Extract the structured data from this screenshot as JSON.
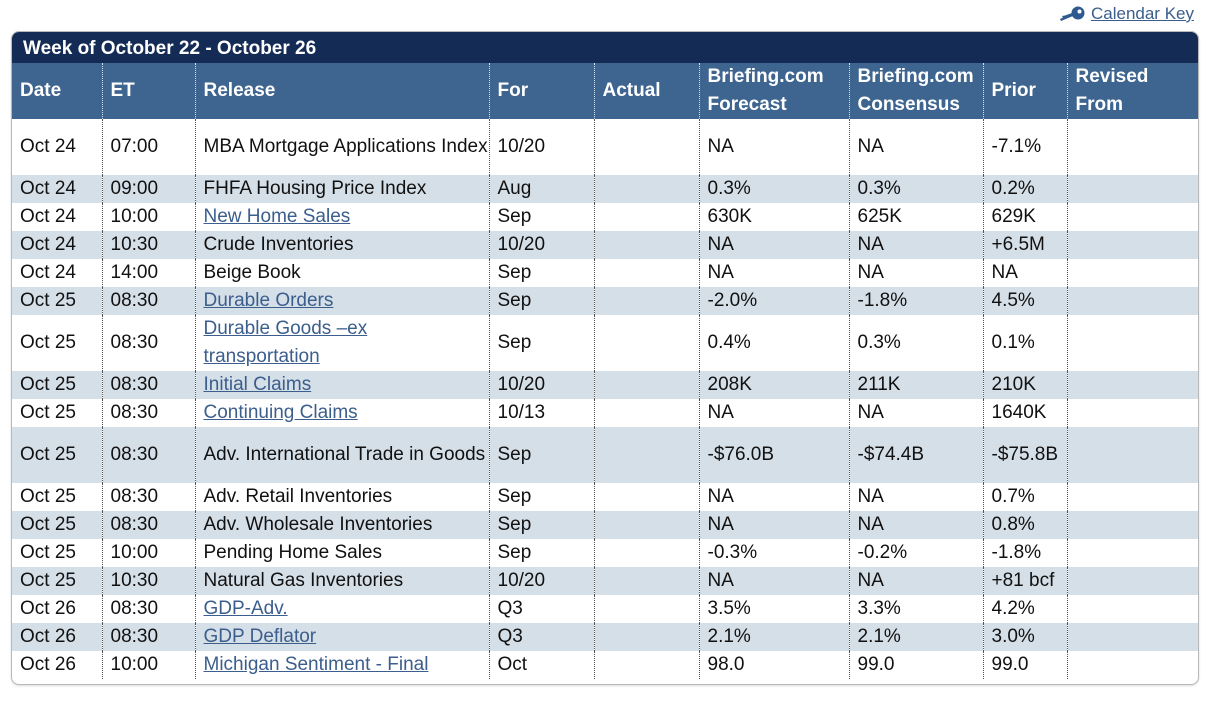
{
  "calendar_key": {
    "label": "Calendar Key",
    "icon": "key-icon"
  },
  "week_title": "Week of October 22 - October 26",
  "columns": [
    "Date",
    "ET",
    "Release",
    "For",
    "Actual",
    "Briefing.com Forecast",
    "Briefing.com Consensus",
    "Prior",
    "Revised From"
  ],
  "rows": [
    {
      "date": "Oct 24",
      "et": "07:00",
      "release": "MBA Mortgage Applications Index",
      "link": false,
      "for": "10/20",
      "actual": "",
      "forecast": "NA",
      "consensus": "NA",
      "prior": "-7.1%",
      "revised": ""
    },
    {
      "date": "Oct 24",
      "et": "09:00",
      "release": "FHFA Housing Price Index",
      "link": false,
      "for": "Aug",
      "actual": "",
      "forecast": "0.3%",
      "consensus": "0.3%",
      "prior": "0.2%",
      "revised": ""
    },
    {
      "date": "Oct 24",
      "et": "10:00",
      "release": "New Home Sales",
      "link": true,
      "for": "Sep",
      "actual": "",
      "forecast": "630K",
      "consensus": "625K",
      "prior": "629K",
      "revised": ""
    },
    {
      "date": "Oct 24",
      "et": "10:30",
      "release": "Crude Inventories",
      "link": false,
      "for": "10/20",
      "actual": "",
      "forecast": "NA",
      "consensus": "NA",
      "prior": "+6.5M",
      "revised": ""
    },
    {
      "date": "Oct 24",
      "et": "14:00",
      "release": "Beige Book",
      "link": false,
      "for": "Sep",
      "actual": "",
      "forecast": "NA",
      "consensus": "NA",
      "prior": "NA",
      "revised": ""
    },
    {
      "date": "Oct 25",
      "et": "08:30",
      "release": "Durable Orders",
      "link": true,
      "for": "Sep",
      "actual": "",
      "forecast": "-2.0%",
      "consensus": "-1.8%",
      "prior": "4.5%",
      "revised": ""
    },
    {
      "date": "Oct 25",
      "et": "08:30",
      "release": "Durable Goods –ex transportation",
      "link": true,
      "for": "Sep",
      "actual": "",
      "forecast": "0.4%",
      "consensus": "0.3%",
      "prior": "0.1%",
      "revised": ""
    },
    {
      "date": "Oct 25",
      "et": "08:30",
      "release": "Initial Claims",
      "link": true,
      "for": "10/20",
      "actual": "",
      "forecast": "208K",
      "consensus": "211K",
      "prior": "210K",
      "revised": ""
    },
    {
      "date": "Oct 25",
      "et": "08:30",
      "release": "Continuing Claims",
      "link": true,
      "for": "10/13",
      "actual": "",
      "forecast": "NA",
      "consensus": "NA",
      "prior": "1640K",
      "revised": ""
    },
    {
      "date": "Oct 25",
      "et": "08:30",
      "release": "Adv. International Trade in Goods",
      "link": false,
      "for": "Sep",
      "actual": "",
      "forecast": "-$76.0B",
      "consensus": "-$74.4B",
      "prior": "-$75.8B",
      "revised": ""
    },
    {
      "date": "Oct 25",
      "et": "08:30",
      "release": "Adv. Retail Inventories",
      "link": false,
      "for": "Sep",
      "actual": "",
      "forecast": "NA",
      "consensus": "NA",
      "prior": "0.7%",
      "revised": ""
    },
    {
      "date": "Oct 25",
      "et": "08:30",
      "release": "Adv. Wholesale Inventories",
      "link": false,
      "for": "Sep",
      "actual": "",
      "forecast": "NA",
      "consensus": "NA",
      "prior": "0.8%",
      "revised": ""
    },
    {
      "date": "Oct 25",
      "et": "10:00",
      "release": "Pending Home Sales",
      "link": false,
      "for": "Sep",
      "actual": "",
      "forecast": "-0.3%",
      "consensus": "-0.2%",
      "prior": "-1.8%",
      "revised": ""
    },
    {
      "date": "Oct 25",
      "et": "10:30",
      "release": "Natural Gas Inventories",
      "link": false,
      "for": "10/20",
      "actual": "",
      "forecast": "NA",
      "consensus": "NA",
      "prior": "+81 bcf",
      "revised": ""
    },
    {
      "date": "Oct 26",
      "et": "08:30",
      "release": "GDP-Adv.",
      "link": true,
      "for": "Q3",
      "actual": "",
      "forecast": "3.5%",
      "consensus": "3.3%",
      "prior": "4.2%",
      "revised": ""
    },
    {
      "date": "Oct 26",
      "et": "08:30",
      "release": "GDP Deflator",
      "link": true,
      "for": "Q3",
      "actual": "",
      "forecast": "2.1%",
      "consensus": "2.1%",
      "prior": "3.0%",
      "revised": ""
    },
    {
      "date": "Oct 26",
      "et": "10:00",
      "release": "Michigan Sentiment - Final",
      "link": true,
      "for": "Oct",
      "actual": "",
      "forecast": "98.0",
      "consensus": "99.0",
      "prior": "99.0",
      "revised": ""
    }
  ]
}
